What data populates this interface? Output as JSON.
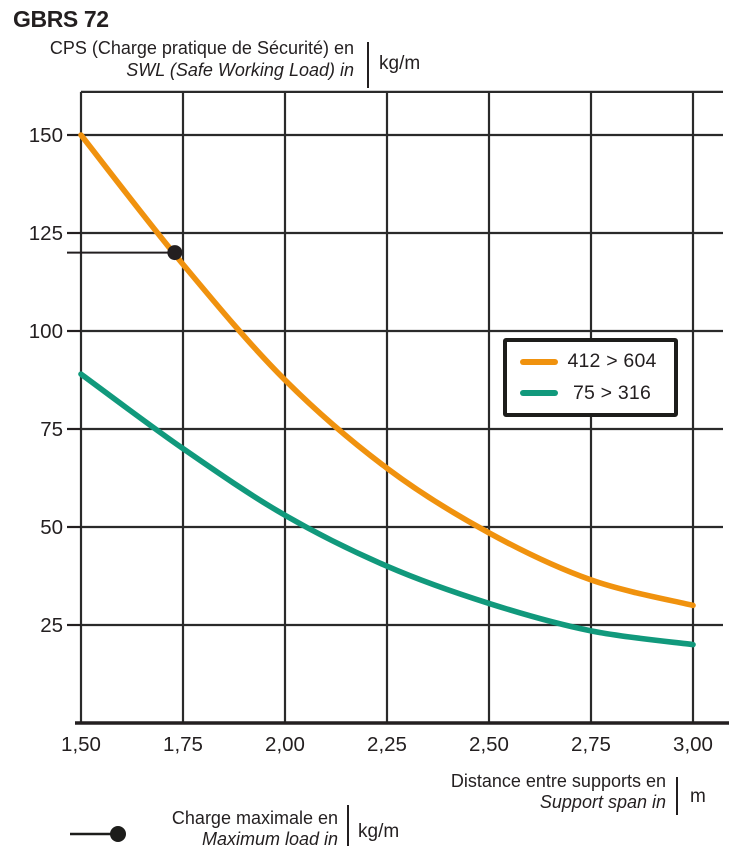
{
  "header": {
    "title": "GBRS 72",
    "y_axis_label_fr": "CPS (Charge pratique de Sécurité) en",
    "y_axis_label_en": "SWL (Safe Working Load) in",
    "y_axis_unit": "kg/m"
  },
  "x_axis_title": {
    "label_fr": "Distance entre supports en",
    "label_en": "Support span in",
    "unit": "m"
  },
  "max_load_legend": {
    "label_fr": "Charge maximale en",
    "label_en": "Maximum load in",
    "unit": "kg/m"
  },
  "colors": {
    "ink": "#231f20",
    "grid": "#2a2a2a",
    "series1": "#f0920e",
    "series2": "#11997c"
  },
  "chart_data": {
    "type": "line",
    "x": [
      1.5,
      1.75,
      2.0,
      2.25,
      2.5,
      2.75,
      3.0
    ],
    "x_tick_labels": [
      "1,50",
      "1,75",
      "2,00",
      "2,25",
      "2,50",
      "2,75",
      "3,00"
    ],
    "y_ticks": [
      25,
      50,
      75,
      100,
      125,
      150
    ],
    "xlim": [
      1.5,
      3.0
    ],
    "ylim": [
      0,
      161
    ],
    "grid": true,
    "legend_position": "middle-right",
    "series": [
      {
        "name": "412 > 604",
        "color": "#f0920e",
        "values": [
          150,
          117,
          87.5,
          65,
          48.5,
          36.5,
          30
        ]
      },
      {
        "name": "75 > 316",
        "color": "#11997c",
        "values": [
          89,
          70,
          53,
          40,
          30.5,
          23.5,
          20
        ]
      }
    ],
    "marker_point": {
      "x": 1.73,
      "y": 120
    }
  }
}
